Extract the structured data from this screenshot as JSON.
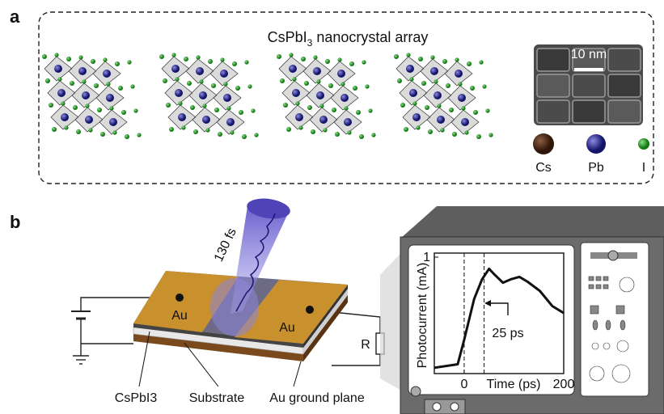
{
  "panels": {
    "a": {
      "label": "a",
      "title": [
        "CsPbI",
        "3",
        " nanocrystal array"
      ],
      "scale_bar": "10 nm",
      "legend": [
        "Cs",
        "Pb",
        "I"
      ]
    },
    "b": {
      "label": "b",
      "pulse": "130 fs",
      "electrodes": [
        "Au",
        "Au"
      ],
      "resistor": "R",
      "labels": [
        "CsPbI3",
        "Substrate",
        "Au ground plane"
      ],
      "inset": {
        "type": "line",
        "ylabel": "Photocurrent (mA)",
        "xlabel": "Time (ps)",
        "x": [
          -60,
          -13,
          0,
          20,
          36,
          50,
          61,
          78,
          94,
          111,
          127,
          152,
          177,
          200
        ],
        "values": [
          0.05,
          0.08,
          0.29,
          0.64,
          0.81,
          0.9,
          0.85,
          0.78,
          0.81,
          0.83,
          0.79,
          0.71,
          0.58,
          0.52
        ],
        "xlim": [
          -60,
          200
        ],
        "ylim": [
          0,
          1
        ],
        "xticks": [
          0,
          200
        ],
        "yticks": [
          1
        ],
        "markers": [
          0,
          40
        ],
        "annotation": "25 ps"
      }
    }
  }
}
